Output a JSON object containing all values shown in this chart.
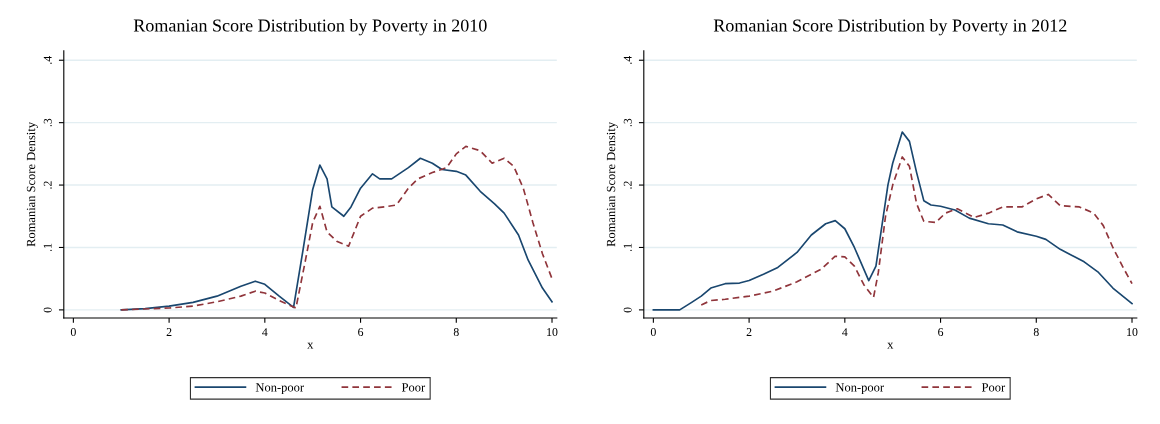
{
  "chart_data": [
    {
      "type": "line",
      "title": "Romanian Score Distribution by Poverty in 2010",
      "xlabel": "x",
      "ylabel": "Romanian Score Density",
      "xlim": [
        -0.2,
        10.1
      ],
      "ylim": [
        -0.013,
        0.415
      ],
      "xticks": [
        0,
        2,
        4,
        6,
        8,
        10
      ],
      "yticks": [
        0,
        {
          "value": 0.1,
          "label": ".1"
        },
        {
          "value": 0.2,
          "label": ".2"
        },
        {
          "value": 0.3,
          "label": ".3"
        },
        {
          "value": 0.4,
          "label": ".4"
        }
      ],
      "grid": "y",
      "legend": "bottom",
      "series": [
        {
          "name": "Non-poor",
          "color": "#1a476f",
          "line_style": "solid",
          "x": [
            1,
            1.5,
            2,
            2.5,
            3,
            3.5,
            3.8,
            4,
            4.3,
            4.6,
            4.8,
            5.0,
            5.15,
            5.3,
            5.4,
            5.65,
            5.8,
            6,
            6.25,
            6.4,
            6.65,
            7,
            7.25,
            7.5,
            7.7,
            8,
            8.2,
            8.5,
            8.8,
            9,
            9.3,
            9.5,
            9.8,
            10
          ],
          "values": [
            0,
            0.002,
            0.006,
            0.012,
            0.022,
            0.038,
            0.046,
            0.041,
            0.022,
            0.004,
            0.097,
            0.193,
            0.232,
            0.21,
            0.165,
            0.15,
            0.165,
            0.195,
            0.218,
            0.21,
            0.21,
            0.228,
            0.243,
            0.235,
            0.225,
            0.222,
            0.216,
            0.19,
            0.17,
            0.155,
            0.12,
            0.08,
            0.035,
            0.013
          ]
        },
        {
          "name": "Poor",
          "color": "#90353b",
          "line_style": "dashed",
          "x": [
            1,
            2,
            2.5,
            3,
            3.5,
            3.8,
            4,
            4.3,
            4.65,
            4.85,
            5.0,
            5.15,
            5.3,
            5.5,
            5.75,
            6,
            6.25,
            6.5,
            6.75,
            7,
            7.2,
            7.5,
            7.8,
            8,
            8.2,
            8.5,
            8.75,
            9,
            9.2,
            9.4,
            9.6,
            9.8,
            10
          ],
          "values": [
            0,
            0.003,
            0.006,
            0.013,
            0.022,
            0.03,
            0.027,
            0.015,
            0.003,
            0.08,
            0.14,
            0.166,
            0.125,
            0.11,
            0.102,
            0.15,
            0.163,
            0.165,
            0.168,
            0.195,
            0.21,
            0.22,
            0.228,
            0.25,
            0.262,
            0.255,
            0.235,
            0.243,
            0.23,
            0.195,
            0.14,
            0.09,
            0.05
          ]
        }
      ]
    },
    {
      "type": "line",
      "title": "Romanian Score Distribution by Poverty in 2012",
      "xlabel": "x",
      "ylabel": "Romanian Score Density",
      "xlim": [
        -0.2,
        10.1
      ],
      "ylim": [
        -0.013,
        0.415
      ],
      "xticks": [
        0,
        2,
        4,
        6,
        8,
        10
      ],
      "yticks": [
        0,
        {
          "value": 0.1,
          "label": ".1"
        },
        {
          "value": 0.2,
          "label": ".2"
        },
        {
          "value": 0.3,
          "label": ".3"
        },
        {
          "value": 0.4,
          "label": ".4"
        }
      ],
      "grid": "y",
      "legend": "bottom",
      "series": [
        {
          "name": "Non-poor",
          "color": "#1a476f",
          "line_style": "solid",
          "x": [
            0,
            0.55,
            0.8,
            1.0,
            1.2,
            1.5,
            1.8,
            2,
            2.3,
            2.6,
            3,
            3.3,
            3.6,
            3.8,
            4,
            4.2,
            4.5,
            4.65,
            4.9,
            5.0,
            5.2,
            5.35,
            5.5,
            5.65,
            5.8,
            6,
            6.3,
            6.6,
            7,
            7.3,
            7.6,
            8,
            8.2,
            8.5,
            8.8,
            9,
            9.3,
            9.6,
            10
          ],
          "values": [
            0,
            0,
            0.012,
            0.022,
            0.035,
            0.042,
            0.043,
            0.047,
            0.057,
            0.068,
            0.092,
            0.12,
            0.138,
            0.143,
            0.13,
            0.1,
            0.047,
            0.07,
            0.2,
            0.235,
            0.285,
            0.27,
            0.22,
            0.175,
            0.168,
            0.166,
            0.16,
            0.147,
            0.138,
            0.136,
            0.125,
            0.118,
            0.113,
            0.097,
            0.085,
            0.077,
            0.06,
            0.035,
            0.01
          ]
        },
        {
          "name": "Poor",
          "color": "#90353b",
          "line_style": "dashed",
          "x": [
            1.0,
            1.2,
            1.5,
            2,
            2.5,
            3,
            3.5,
            3.8,
            4,
            4.2,
            4.4,
            4.6,
            4.7,
            4.85,
            5.0,
            5.2,
            5.35,
            5.5,
            5.65,
            5.9,
            6.1,
            6.35,
            6.7,
            7,
            7.3,
            7.7,
            8,
            8.25,
            8.5,
            8.9,
            9.2,
            9.4,
            9.6,
            9.8,
            10
          ],
          "values": [
            0.008,
            0.015,
            0.017,
            0.022,
            0.03,
            0.045,
            0.065,
            0.086,
            0.085,
            0.07,
            0.04,
            0.02,
            0.06,
            0.15,
            0.2,
            0.245,
            0.23,
            0.17,
            0.142,
            0.14,
            0.155,
            0.162,
            0.148,
            0.155,
            0.165,
            0.165,
            0.178,
            0.185,
            0.167,
            0.165,
            0.155,
            0.135,
            0.1,
            0.07,
            0.042
          ]
        }
      ]
    }
  ]
}
